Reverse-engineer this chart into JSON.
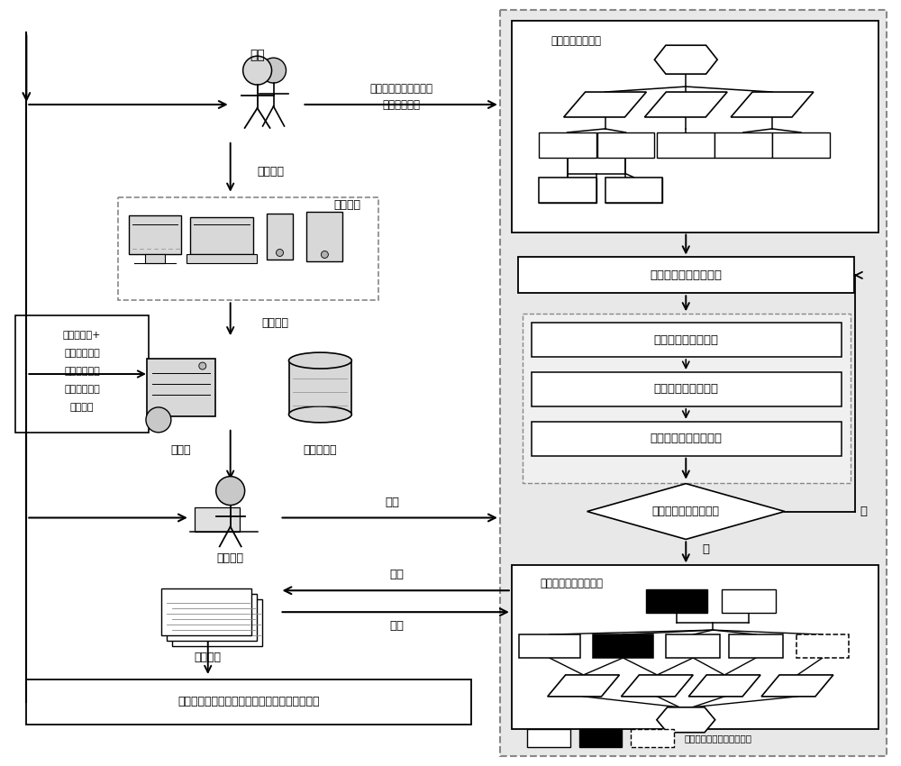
{
  "bg_color": "#ffffff",
  "panel_bg": "#e8e8e8",
  "panel_border": "#888888",
  "white": "#ffffff",
  "black": "#000000",
  "light_gray": "#f0f0f0",
  "mid_gray": "#d0d0d0",
  "dark_gray": "#a0a0a0",
  "texts": {
    "user": "用户",
    "user_arrow_label1": "用户可参与设计全过程",
    "user_arrow_label2": "提出实时意见",
    "propose_demand": "提出需求",
    "multi_terminal": "多源终端",
    "generate_order": "生成订单",
    "server": "服务器",
    "design_db": "设计资源库",
    "feedback_line1": "通过互联网+",
    "feedback_line2": "设计平台实时",
    "feedback_line3": "互反馈，修改",
    "feedback_line4": "设计方案满足",
    "feedback_line5": "用户需求",
    "design_staff": "设计人员",
    "design": "设计",
    "design_plan": "设计方案",
    "generate": "生成",
    "modify": "修改",
    "final_box": "完成最终满足用户需求的定制机械产品设计方案",
    "module_decomp": "机械产品模块分解",
    "match_modes": "匹配各个模块设计模式",
    "config_mode": "按订单配置设计模式",
    "deform_mode": "按订单变形设计模式",
    "generative_mode": "按订单生成式设计模式",
    "decision": "是否完成全部模块设计",
    "yes_label": "是",
    "no_label": "否",
    "module_fusion": "机械产品模块方案融合",
    "legend_text": "不同设计模式下的模块方案"
  }
}
